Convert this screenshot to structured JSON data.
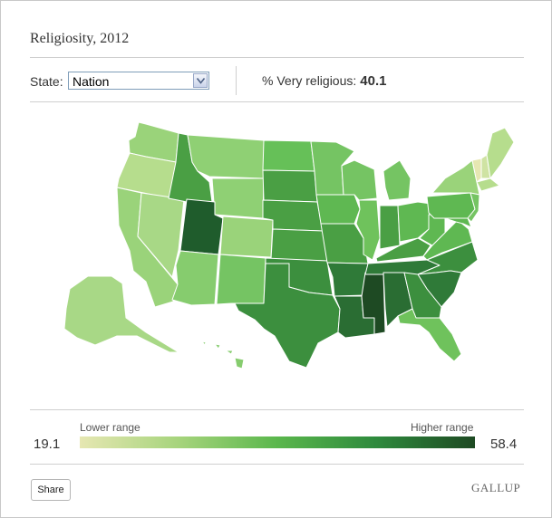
{
  "title": "Religiosity, 2012",
  "controls": {
    "state_label": "State:",
    "state_selected": "Nation",
    "metric_label": "% Very religious:",
    "metric_value": "40.1"
  },
  "legend": {
    "low_label": "Lower range",
    "high_label": "Higher range",
    "min": "19.1",
    "max": "58.4",
    "colors": [
      "#e6e7b2",
      "#a6d47c",
      "#5ab74c",
      "#2e8a3d",
      "#1e4a23"
    ]
  },
  "footer": {
    "share_label": "Share",
    "brand": "GALLUP"
  },
  "map": {
    "state_colors": {
      "WA": "#9ad37a",
      "OR": "#b6dd8d",
      "CA": "#9ad37a",
      "NV": "#a8d886",
      "ID": "#4a9f44",
      "MT": "#8fd074",
      "WY": "#8fd074",
      "UT": "#1f5c2c",
      "AZ": "#86cc6e",
      "CO": "#9ad37a",
      "NM": "#75c463",
      "ND": "#66c058",
      "SD": "#4a9f44",
      "NE": "#4a9f44",
      "KS": "#4a9f44",
      "OK": "#3c8f3e",
      "TX": "#3c8f3e",
      "MN": "#75c463",
      "IA": "#5fb852",
      "MO": "#4a9f44",
      "AR": "#2f7a38",
      "LA": "#2a6d33",
      "WI": "#75c463",
      "IL": "#6fc25c",
      "MS": "#1e4a23",
      "MI": "#75c463",
      "IN": "#4a9f44",
      "KY": "#4a9f44",
      "TN": "#2f7a38",
      "AL": "#2a6d33",
      "OH": "#5fb852",
      "WV": "#5fb852",
      "GA": "#3c8f3e",
      "FL": "#6fc25c",
      "SC": "#2f7a38",
      "NC": "#3c8f3e",
      "VA": "#5fb852",
      "PA": "#5fb852",
      "NY": "#9ad37a",
      "ME": "#b6dd8d",
      "NH": "#cfe3a3",
      "VT": "#e6e7b2",
      "MA": "#b6dd8d",
      "NJ": "#75c463",
      "MD": "#5fb852",
      "AK": "#a8d886",
      "HI": "#86cc6e"
    }
  }
}
